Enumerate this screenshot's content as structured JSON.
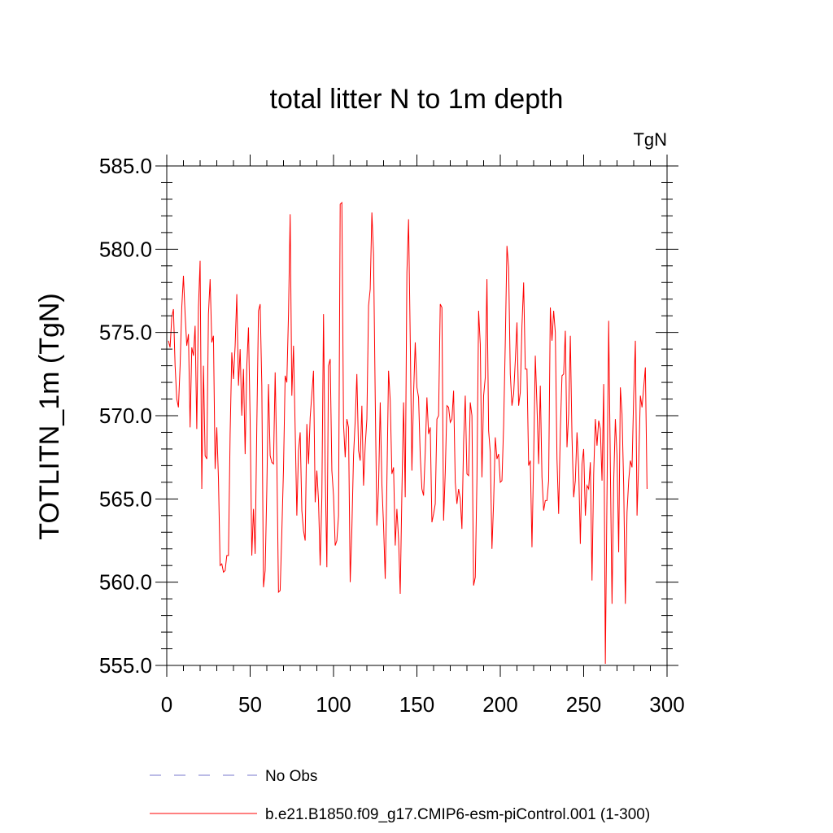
{
  "chart_data": {
    "type": "line",
    "title": "total litter N to 1m depth",
    "units_label": "TgN",
    "xlabel": "",
    "ylabel": "TOTLITN_1m  (TgN)",
    "xlim": [
      0,
      300
    ],
    "ylim": [
      555,
      585
    ],
    "x_ticks": [
      0,
      50,
      100,
      150,
      200,
      250,
      300
    ],
    "x_tick_labels": [
      "0",
      "50",
      "100",
      "150",
      "200",
      "250",
      "300"
    ],
    "y_ticks": [
      555,
      560,
      565,
      570,
      575,
      580,
      585
    ],
    "y_tick_labels": [
      "555.0",
      "560.0",
      "565.0",
      "570.0",
      "575.0",
      "580.0",
      "585.0"
    ],
    "grid": false,
    "legend": [
      {
        "label": "No Obs",
        "color": "#7777cc",
        "style": "dashed"
      },
      {
        "label": "b.e21.B1850.f09_g17.CMIP6-esm-piControl.001 (1-300)",
        "color": "#ff0000",
        "style": "solid"
      }
    ],
    "series": [
      {
        "name": "b.e21.B1850.f09_g17.CMIP6-esm-piControl.001 (1-300)",
        "color": "#ff0000",
        "x_start": 1,
        "values": [
          574.5,
          574.1,
          575.9,
          576.4,
          573.0,
          571.0,
          570.5,
          573.0,
          576.5,
          578.4,
          576.1,
          574.2,
          574.9,
          569.3,
          574.1,
          573.6,
          575.4,
          569.2,
          576.5,
          579.3,
          565.6,
          573.0,
          567.6,
          567.4,
          576.1,
          578.2,
          574.4,
          574.8,
          566.8,
          569.3,
          566.2,
          561.0,
          561.1,
          560.6,
          560.7,
          561.6,
          561.6,
          568.9,
          573.8,
          572.2,
          574.2,
          577.3,
          571.8,
          574.0,
          570.0,
          572.8,
          567.7,
          573.0,
          575.3,
          569.7,
          561.6,
          564.4,
          561.7,
          569.4,
          576.3,
          576.7,
          571.8,
          559.7,
          560.7,
          565.6,
          571.9,
          567.6,
          567.2,
          567.1,
          572.6,
          567.3,
          559.4,
          559.5,
          563.0,
          566.8,
          572.4,
          572.0,
          576.1,
          582.1,
          571.2,
          574.2,
          569.2,
          564.0,
          567.9,
          569.0,
          564.3,
          563.1,
          562.5,
          569.5,
          567.1,
          569.9,
          571.3,
          572.7,
          564.8,
          566.7,
          564.9,
          561.0,
          565.1,
          576.1,
          566.7,
          560.9,
          573.0,
          573.4,
          566.7,
          565.2,
          562.2,
          562.5,
          564.0,
          582.7,
          582.8,
          569.5,
          567.5,
          569.8,
          569.3,
          560.0,
          563.2,
          567.6,
          569.7,
          572.5,
          567.9,
          567.3,
          570.6,
          565.8,
          568.2,
          569.8,
          576.6,
          577.6,
          582.2,
          579.7,
          571.1,
          563.4,
          565.7,
          570.8,
          565.9,
          563.4,
          560.2,
          566.0,
          572.7,
          570.9,
          566.5,
          566.9,
          562.2,
          564.4,
          562.6,
          559.3,
          565.4,
          570.8,
          565.1,
          578.6,
          581.8,
          574.6,
          566.7,
          571.3,
          574.4,
          571.7,
          571.1,
          567.6,
          565.6,
          565.2,
          567.8,
          571.1,
          568.9,
          569.3,
          563.6,
          564.1,
          564.7,
          569.8,
          570.0,
          576.7,
          576.5,
          563.7,
          566.6,
          570.6,
          570.5,
          569.6,
          569.8,
          571.5,
          566.0,
          564.7,
          565.6,
          565.0,
          563.2,
          568.4,
          571.2,
          566.5,
          566.4,
          570.8,
          570.0,
          559.8,
          560.3,
          566.2,
          576.3,
          574.3,
          566.3,
          571.2,
          572.3,
          578.2,
          569.1,
          567.8,
          562.0,
          564.8,
          568.7,
          567.4,
          567.7,
          566.0,
          566.1,
          569.4,
          574.4,
          580.2,
          578.9,
          572.5,
          570.6,
          571.3,
          573.3,
          575.6,
          570.6,
          571.4,
          575.4,
          578.0,
          572.8,
          572.8,
          567.0,
          567.3,
          562.1,
          567.4,
          573.6,
          570.6,
          567.1,
          571.8,
          566.3,
          564.3,
          564.9,
          564.9,
          566.1,
          576.5,
          574.5,
          576.3,
          575.0,
          567.4,
          564.1,
          569.1,
          572.4,
          572.5,
          575.1,
          568.1,
          570.1,
          574.8,
          568.7,
          565.1,
          566.1,
          569.0,
          566.9,
          562.3,
          567.1,
          568.0,
          564.0,
          565.8,
          565.6,
          567.2,
          560.1,
          566.5,
          569.8,
          568.2,
          569.7,
          569.2,
          566.1,
          571.9,
          555.1,
          565.4,
          575.7,
          566.9,
          558.7,
          566.0,
          569.8,
          567.6,
          561.8,
          571.7,
          570.1,
          565.8,
          558.7,
          564.2,
          566.1,
          567.3,
          566.9,
          571.2,
          574.5,
          564.0,
          567.2,
          571.2,
          570.5,
          571.7,
          572.9,
          565.6
        ]
      }
    ]
  }
}
